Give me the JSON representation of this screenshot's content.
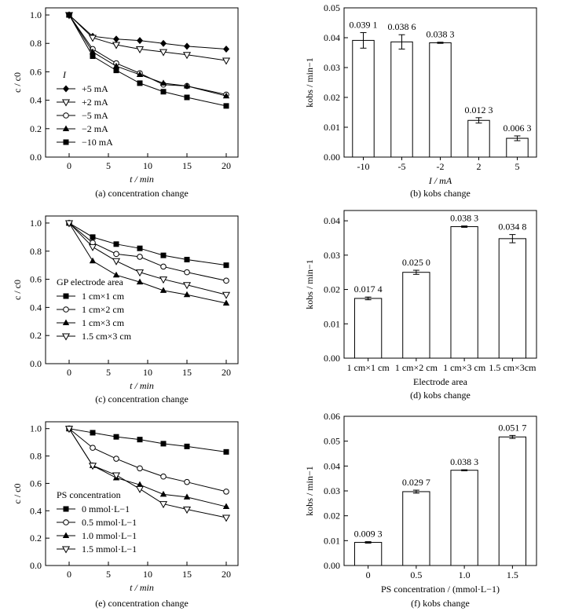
{
  "chart_data": [
    {
      "id": "a",
      "type": "line",
      "caption": "(a) concentration change",
      "xlabel": "t / min",
      "ylabel": "c / c0",
      "xlim": [
        -3,
        21.5
      ],
      "ylim": [
        0,
        1.05
      ],
      "xticks": [
        0,
        5,
        10,
        15,
        20
      ],
      "yticks": [
        0.0,
        0.2,
        0.4,
        0.6,
        0.8,
        1.0
      ],
      "ytick_decimals": 1,
      "grid": false,
      "legend": {
        "position": "left-center",
        "title": "I"
      },
      "series": [
        {
          "name": "+5  mA",
          "marker": "diamond",
          "x": [
            0,
            3,
            6,
            9,
            12,
            15,
            20
          ],
          "y": [
            1.0,
            0.85,
            0.83,
            0.82,
            0.8,
            0.78,
            0.76
          ]
        },
        {
          "name": "+2  mA",
          "marker": "triangle-down",
          "x": [
            0,
            3,
            6,
            9,
            12,
            15,
            20
          ],
          "y": [
            1.0,
            0.84,
            0.79,
            0.76,
            0.74,
            0.72,
            0.68
          ]
        },
        {
          "name": "−5  mA",
          "marker": "circle",
          "x": [
            0,
            3,
            6,
            9,
            12,
            15,
            20
          ],
          "y": [
            1.0,
            0.76,
            0.66,
            0.59,
            0.51,
            0.5,
            0.44
          ]
        },
        {
          "name": "−2  mA",
          "marker": "triangle-up",
          "x": [
            0,
            3,
            6,
            9,
            12,
            15,
            20
          ],
          "y": [
            1.0,
            0.74,
            0.64,
            0.58,
            0.52,
            0.5,
            0.43
          ]
        },
        {
          "name": "−10 mA",
          "marker": "square",
          "x": [
            0,
            3,
            6,
            9,
            12,
            15,
            20
          ],
          "y": [
            1.0,
            0.71,
            0.61,
            0.52,
            0.46,
            0.42,
            0.36
          ]
        }
      ]
    },
    {
      "id": "b",
      "type": "bar",
      "caption": "(b) kobs change",
      "xlabel": "I / mA",
      "ylabel": "kobs / min−1",
      "ylim": [
        0,
        0.05
      ],
      "yticks": [
        0.0,
        0.01,
        0.02,
        0.03,
        0.04,
        0.05
      ],
      "ytick_decimals": 2,
      "grid": false,
      "categories": [
        "-10",
        "-5",
        "-2",
        "2",
        "5"
      ],
      "values": [
        0.0391,
        0.0386,
        0.0383,
        0.0123,
        0.0063
      ],
      "errors": [
        0.0026,
        0.0024,
        0.0002,
        0.0009,
        0.0008
      ],
      "value_labels": [
        "0.039 1",
        "0.038 6",
        "0.038 3",
        "0.012 3",
        "0.006 3"
      ]
    },
    {
      "id": "c",
      "type": "line",
      "caption": "(c) concentration change",
      "xlabel": "t / min",
      "ylabel": "c / c0",
      "xlim": [
        -3,
        21.5
      ],
      "ylim": [
        0,
        1.05
      ],
      "xticks": [
        0,
        5,
        10,
        15,
        20
      ],
      "yticks": [
        0.0,
        0.2,
        0.4,
        0.6,
        0.8,
        1.0
      ],
      "ytick_decimals": 1,
      "grid": false,
      "legend": {
        "position": "left-center",
        "title": "GP electrode area"
      },
      "series": [
        {
          "name": "1 cm×1 cm",
          "marker": "square",
          "x": [
            0,
            3,
            6,
            9,
            12,
            15,
            20
          ],
          "y": [
            1.0,
            0.9,
            0.85,
            0.82,
            0.77,
            0.74,
            0.7
          ]
        },
        {
          "name": "1 cm×2 cm",
          "marker": "circle",
          "x": [
            0,
            3,
            6,
            9,
            12,
            15,
            20
          ],
          "y": [
            1.0,
            0.86,
            0.78,
            0.76,
            0.69,
            0.65,
            0.59
          ]
        },
        {
          "name": "1 cm×3 cm",
          "marker": "triangle-up",
          "x": [
            0,
            3,
            6,
            9,
            12,
            15,
            20
          ],
          "y": [
            1.0,
            0.73,
            0.63,
            0.58,
            0.52,
            0.49,
            0.43
          ]
        },
        {
          "name": "1.5 cm×3 cm",
          "marker": "triangle-down",
          "x": [
            0,
            3,
            6,
            9,
            12,
            15,
            20
          ],
          "y": [
            1.0,
            0.83,
            0.73,
            0.65,
            0.6,
            0.56,
            0.49
          ]
        }
      ]
    },
    {
      "id": "d",
      "type": "bar",
      "caption": "(d) kobs change",
      "xlabel": "Electrode area",
      "ylabel": "kobs / min−1",
      "ylim": [
        0,
        0.043
      ],
      "yticks": [
        0.0,
        0.01,
        0.02,
        0.03,
        0.04
      ],
      "ytick_decimals": 2,
      "grid": false,
      "categories": [
        "1 cm×1 cm",
        "1 cm×2 cm",
        "1 cm×3 cm",
        "1.5 cm×3cm"
      ],
      "values": [
        0.0174,
        0.025,
        0.0383,
        0.0348
      ],
      "errors": [
        0.0004,
        0.0006,
        0.0002,
        0.0012
      ],
      "value_labels": [
        "0.017 4",
        "0.025 0",
        "0.038 3",
        "0.034 8"
      ]
    },
    {
      "id": "e",
      "type": "line",
      "caption": "(e) concentration change",
      "xlabel": "t / min",
      "ylabel": "c / c0",
      "xlim": [
        -3,
        21.5
      ],
      "ylim": [
        0,
        1.05
      ],
      "xticks": [
        0,
        5,
        10,
        15,
        20
      ],
      "yticks": [
        0.0,
        0.2,
        0.4,
        0.6,
        0.8,
        1.0
      ],
      "ytick_decimals": 1,
      "grid": false,
      "legend": {
        "position": "left-bottom",
        "title": "PS concentration"
      },
      "series": [
        {
          "name": "0 mmol·L−1",
          "marker": "square",
          "x": [
            0,
            3,
            6,
            9,
            12,
            15,
            20
          ],
          "y": [
            1.0,
            0.97,
            0.94,
            0.92,
            0.89,
            0.87,
            0.83
          ]
        },
        {
          "name": "0.5 mmol·L−1",
          "marker": "circle",
          "x": [
            0,
            3,
            6,
            9,
            12,
            15,
            20
          ],
          "y": [
            1.0,
            0.86,
            0.78,
            0.71,
            0.65,
            0.61,
            0.54
          ]
        },
        {
          "name": "1.0 mmol·L−1",
          "marker": "triangle-up",
          "x": [
            0,
            3,
            6,
            9,
            12,
            15,
            20
          ],
          "y": [
            1.0,
            0.73,
            0.64,
            0.59,
            0.52,
            0.5,
            0.43
          ]
        },
        {
          "name": "1.5 mmol·L−1",
          "marker": "triangle-down",
          "x": [
            0,
            3,
            6,
            9,
            12,
            15,
            20
          ],
          "y": [
            1.0,
            0.73,
            0.66,
            0.56,
            0.45,
            0.41,
            0.35
          ]
        }
      ]
    },
    {
      "id": "f",
      "type": "bar",
      "caption": "(f) kobs change",
      "xlabel": "PS concentration / (mmol·L−1)",
      "ylabel": "kobs / min−1",
      "ylim": [
        0,
        0.06
      ],
      "yticks": [
        0.0,
        0.01,
        0.02,
        0.03,
        0.04,
        0.05,
        0.06
      ],
      "ytick_decimals": 2,
      "grid": false,
      "categories": [
        "0",
        "0.5",
        "1.0",
        "1.5"
      ],
      "values": [
        0.0093,
        0.0297,
        0.0383,
        0.0517
      ],
      "errors": [
        0.0003,
        0.0006,
        0.0002,
        0.0006
      ],
      "value_labels": [
        "0.009 3",
        "0.029 7",
        "0.038 3",
        "0.051 7"
      ]
    }
  ]
}
